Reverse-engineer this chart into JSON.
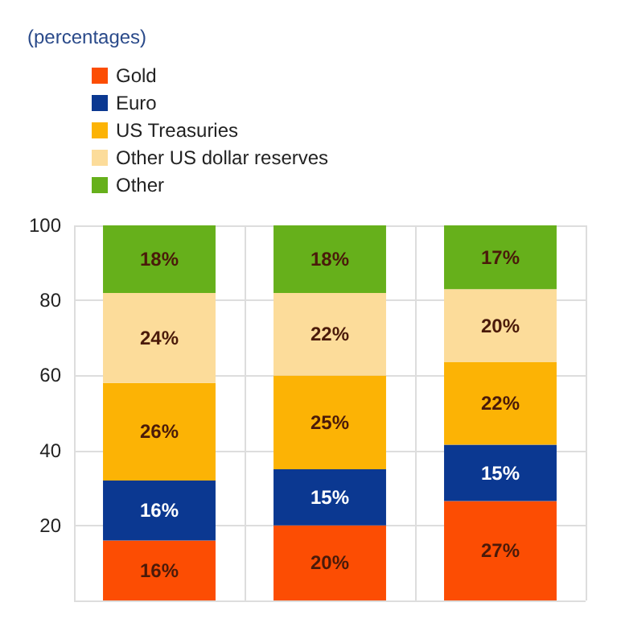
{
  "chart_data": {
    "type": "bar",
    "subtitle": "(percentages)",
    "stacked": true,
    "categories": [
      null,
      null,
      null
    ],
    "series": [
      {
        "name": "Gold",
        "color": "#fc4d03",
        "values": [
          16,
          20,
          26.5
        ],
        "value_labels": [
          "16%",
          "20%",
          "27%"
        ]
      },
      {
        "name": "Euro",
        "color": "#0b3891",
        "values": [
          16,
          15,
          15
        ],
        "value_labels": [
          "16%",
          "15%",
          "15%"
        ]
      },
      {
        "name": "US Treasuries",
        "color": "#fcb305",
        "values": [
          26,
          25,
          22
        ],
        "value_labels": [
          "26%",
          "25%",
          "22%"
        ]
      },
      {
        "name": "Other US dollar reserves",
        "color": "#fcdc9a",
        "values": [
          24,
          22,
          19.5
        ],
        "value_labels": [
          "24%",
          "22%",
          "20%"
        ]
      },
      {
        "name": "Other",
        "color": "#66b01b",
        "values": [
          18,
          18,
          17
        ],
        "value_labels": [
          "18%",
          "18%",
          "17%"
        ]
      }
    ],
    "ylim": [
      0,
      100
    ],
    "yticks": [
      {
        "value": 0,
        "label": null
      },
      20,
      40,
      60,
      80,
      100
    ],
    "grid": true,
    "legend": "top left"
  }
}
